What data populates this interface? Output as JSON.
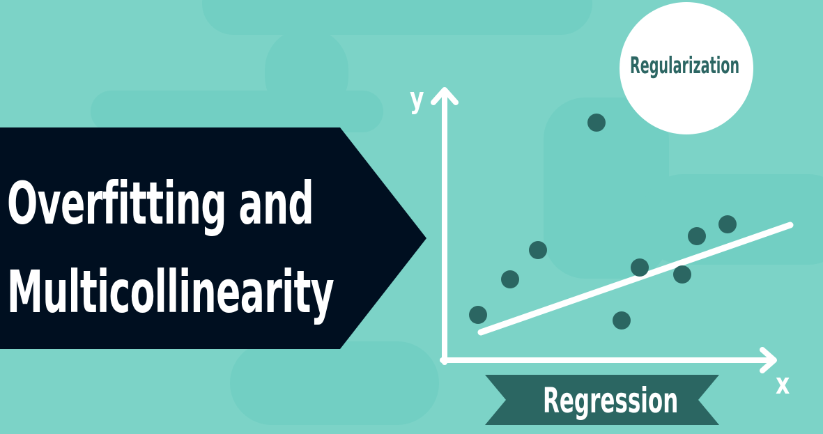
{
  "title": {
    "line1": "Overfitting and",
    "line2": "Multicollinearity"
  },
  "badge": {
    "label": "Regularization"
  },
  "ribbon": {
    "label": "Regression"
  },
  "axes": {
    "y_label": "y",
    "x_label": "x"
  },
  "colors": {
    "background": "#7cd3c7",
    "title_block": "#000f20",
    "points": "#2b6662",
    "white": "#ffffff"
  }
}
